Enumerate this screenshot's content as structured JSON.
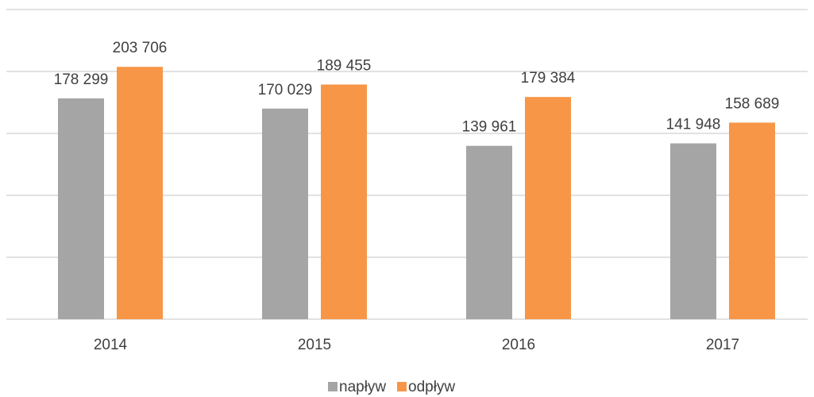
{
  "chart_data": {
    "type": "bar",
    "categories": [
      "2014",
      "2015",
      "2016",
      "2017"
    ],
    "series": [
      {
        "name": "napływ",
        "color": "#a5a5a5",
        "values": [
          178299,
          170029,
          139961,
          141948
        ],
        "value_labels": [
          "178 299",
          "170 029",
          "139 961",
          "141 948"
        ]
      },
      {
        "name": "odpływ",
        "color": "#f79646",
        "values": [
          203706,
          189455,
          179384,
          158689
        ],
        "value_labels": [
          "203 706",
          "189 455",
          "179 384",
          "158 689"
        ]
      }
    ],
    "ylim": [
      0,
      250000
    ],
    "yticks": [
      0,
      50000,
      100000,
      150000,
      200000,
      250000
    ],
    "grid": true,
    "legend": "bottom"
  }
}
